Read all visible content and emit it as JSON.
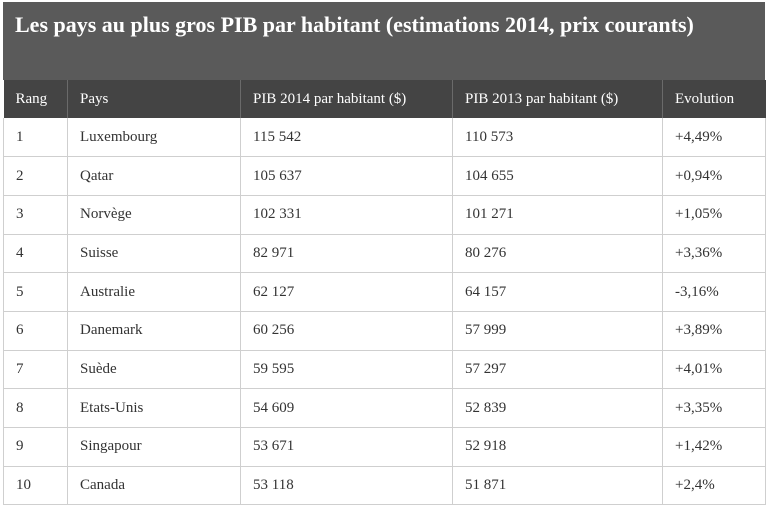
{
  "title": "Les pays au plus gros PIB par habitant (estimations 2014, prix courants)",
  "headers": {
    "rank": "Rang",
    "country": "Pays",
    "gdp2014": "PIB 2014 par habitant ($)",
    "gdp2013": "PIB 2013 par habitant ($)",
    "evolution": "Evolution"
  },
  "rows": [
    {
      "rank": "1",
      "country": "Luxembourg",
      "gdp2014": "115 542",
      "gdp2013": "110 573",
      "evolution": "+4,49%"
    },
    {
      "rank": "2",
      "country": "Qatar",
      "gdp2014": "105 637",
      "gdp2013": "104 655",
      "evolution": "+0,94%"
    },
    {
      "rank": "3",
      "country": "Norvège",
      "gdp2014": "102 331",
      "gdp2013": "101 271",
      "evolution": "+1,05%"
    },
    {
      "rank": "4",
      "country": "Suisse",
      "gdp2014": "82 971",
      "gdp2013": "80 276",
      "evolution": "+3,36%"
    },
    {
      "rank": "5",
      "country": "Australie",
      "gdp2014": "62 127",
      "gdp2013": "64 157",
      "evolution": "-3,16%"
    },
    {
      "rank": "6",
      "country": "Danemark",
      "gdp2014": "60 256",
      "gdp2013": "57 999",
      "evolution": "+3,89%"
    },
    {
      "rank": "7",
      "country": "Suède",
      "gdp2014": "59 595",
      "gdp2013": "57 297",
      "evolution": "+4,01%"
    },
    {
      "rank": "8",
      "country": "Etats-Unis",
      "gdp2014": "54 609",
      "gdp2013": "52 839",
      "evolution": "+3,35%"
    },
    {
      "rank": "9",
      "country": "Singapour",
      "gdp2014": "53 671",
      "gdp2013": "52 918",
      "evolution": "+1,42%"
    },
    {
      "rank": "10",
      "country": "Canada",
      "gdp2014": "53 118",
      "gdp2013": "51 871",
      "evolution": "+2,4%"
    }
  ]
}
